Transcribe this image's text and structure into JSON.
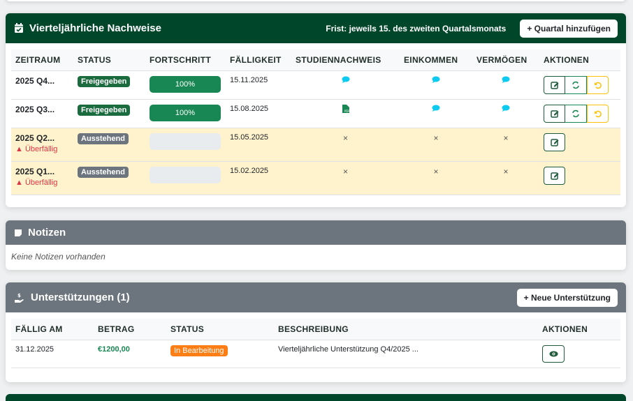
{
  "colors": {
    "primary": "#00462a",
    "secondary": "#6c757d",
    "success": "#198754",
    "warning_row": "#fff3cd",
    "danger": "#dc3545",
    "info": "#0dcaf0",
    "orange": "#fd7e14",
    "yellow": "#ffc107"
  },
  "nachweise": {
    "title": "Vierteljährliche Nachweise",
    "deadline": "Frist: jeweils 15. des zweiten Quartalsmonats",
    "add_button": "+ Quartal hinzufügen",
    "columns": [
      "ZEITRAUM",
      "STATUS",
      "FORTSCHRITT",
      "FÄLLIGKEIT",
      "STUDIENNACHWEIS",
      "EINKOMMEN",
      "VERMÖGEN",
      "AKTIONEN"
    ],
    "rows": [
      {
        "period": "2025 Q4...",
        "status": "Freigegeben",
        "progress": 100,
        "progress_label": "100%",
        "due": "15.11.2025",
        "studien": "comment-icon",
        "einkommen": "comment-icon",
        "vermoegen": "comment-icon",
        "overdue": ""
      },
      {
        "period": "2025 Q3...",
        "status": "Freigegeben",
        "progress": 100,
        "progress_label": "100%",
        "due": "15.08.2025",
        "studien": "pdf-file-icon",
        "einkommen": "comment-icon",
        "vermoegen": "comment-icon",
        "overdue": ""
      },
      {
        "period": "2025 Q2...",
        "status": "Ausstehend",
        "progress": 0,
        "progress_label": "",
        "due": "15.05.2025",
        "studien": "×",
        "einkommen": "×",
        "vermoegen": "×",
        "overdue": "Überfällig"
      },
      {
        "period": "2025 Q1...",
        "status": "Ausstehend",
        "progress": 0,
        "progress_label": "",
        "due": "15.02.2025",
        "studien": "×",
        "einkommen": "×",
        "vermoegen": "×",
        "overdue": "Überfällig"
      }
    ]
  },
  "notizen": {
    "title": "Notizen",
    "empty": "Keine Notizen vorhanden"
  },
  "unterstuetzungen": {
    "title": "Unterstützungen (1)",
    "add_button": "+ Neue Unterstützung",
    "columns": [
      "FÄLLIG AM",
      "BETRAG",
      "STATUS",
      "BESCHREIBUNG",
      "AKTIONEN"
    ],
    "rows": [
      {
        "due": "31.12.2025",
        "amount": "€1200,00",
        "status": "In Bearbeitung",
        "description": "Vierteljährliche Unterstützung Q4/2025 ..."
      }
    ]
  }
}
